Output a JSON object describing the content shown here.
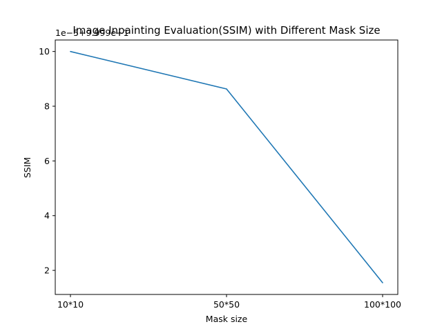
{
  "chart_data": {
    "type": "line",
    "title": "Image Inpainting Evaluation(SSIM) with Different Mask Size",
    "xlabel": "Mask size",
    "ylabel": "SSIM",
    "offset_text": "1e−5+9.999e−1",
    "categories": [
      "10*10",
      "50*50",
      "100*100"
    ],
    "series": [
      {
        "name": "SSIM",
        "values": [
          10.0,
          8.63,
          1.55
        ],
        "color": "#1f77b4"
      }
    ],
    "yticks": [
      2,
      4,
      6,
      8,
      10
    ],
    "ylim": [
      1.12,
      10.42
    ],
    "grid": false
  }
}
